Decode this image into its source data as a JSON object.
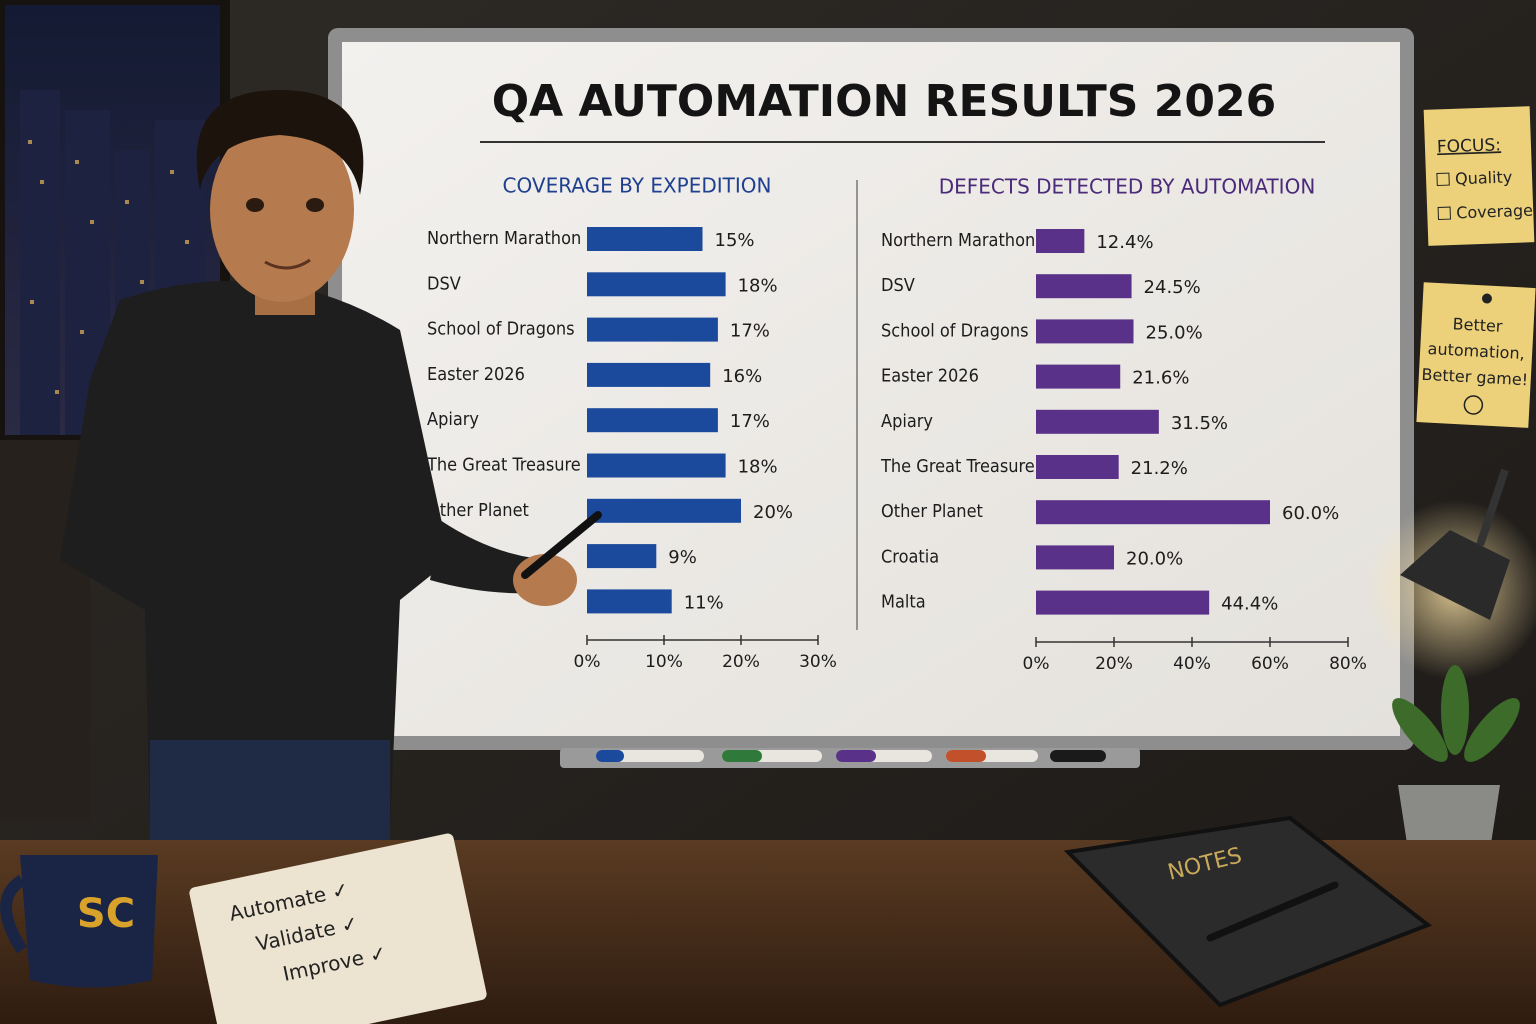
{
  "board_title": "QA AUTOMATION RESULTS 2026",
  "chart_data": [
    {
      "type": "bar",
      "orientation": "horizontal",
      "title": "COVERAGE BY EXPEDITION",
      "categories": [
        "Northern Marathon",
        "DSV",
        "School of Dragons",
        "Easter 2026",
        "Apiary",
        "The Great Treasure",
        "Other Planet",
        null,
        null
      ],
      "values": [
        15,
        18,
        17,
        16,
        17,
        18,
        20,
        9,
        11
      ],
      "value_labels": [
        "15%",
        "18%",
        "17%",
        "16%",
        "17%",
        "18%",
        "20%",
        "9%",
        "11%"
      ],
      "color": "#1b4a9c",
      "xlim": [
        0,
        30
      ],
      "xticks": [
        {
          "value": 0,
          "label": "0%"
        },
        {
          "value": 10,
          "label": "10%"
        },
        {
          "value": 20,
          "label": "20%"
        },
        {
          "value": 30,
          "label": "30%"
        }
      ]
    },
    {
      "type": "bar",
      "orientation": "horizontal",
      "title": "DEFECTS DETECTED BY AUTOMATION",
      "categories": [
        "Northern Marathon",
        "DSV",
        "School of Dragons",
        "Easter 2026",
        "Apiary",
        "The Great Treasure",
        "Other Planet",
        "Croatia",
        "Malta"
      ],
      "values": [
        12.4,
        24.5,
        25.0,
        21.6,
        31.5,
        21.2,
        60.0,
        20.0,
        44.4
      ],
      "value_labels": [
        "12.4%",
        "24.5%",
        "25.0%",
        "21.6%",
        "31.5%",
        "21.2%",
        "60.0%",
        "20.0%",
        "44.4%"
      ],
      "color": "#5a3188",
      "xlim": [
        0,
        80
      ],
      "xticks": [
        {
          "value": 0,
          "label": "0%"
        },
        {
          "value": 20,
          "label": "20%"
        },
        {
          "value": 40,
          "label": "40%"
        },
        {
          "value": 60,
          "label": "60%"
        },
        {
          "value": 80,
          "label": "80%"
        }
      ]
    }
  ],
  "sticky_focus": {
    "heading": "FOCUS:",
    "items": [
      "Quality",
      "Coverage"
    ]
  },
  "sticky_motto": [
    "Better",
    "automation,",
    "Better game!"
  ],
  "mug": "SC",
  "notepad": [
    "Automate ✓",
    "Validate ✓",
    "Improve ✓"
  ],
  "book": "NOTES"
}
